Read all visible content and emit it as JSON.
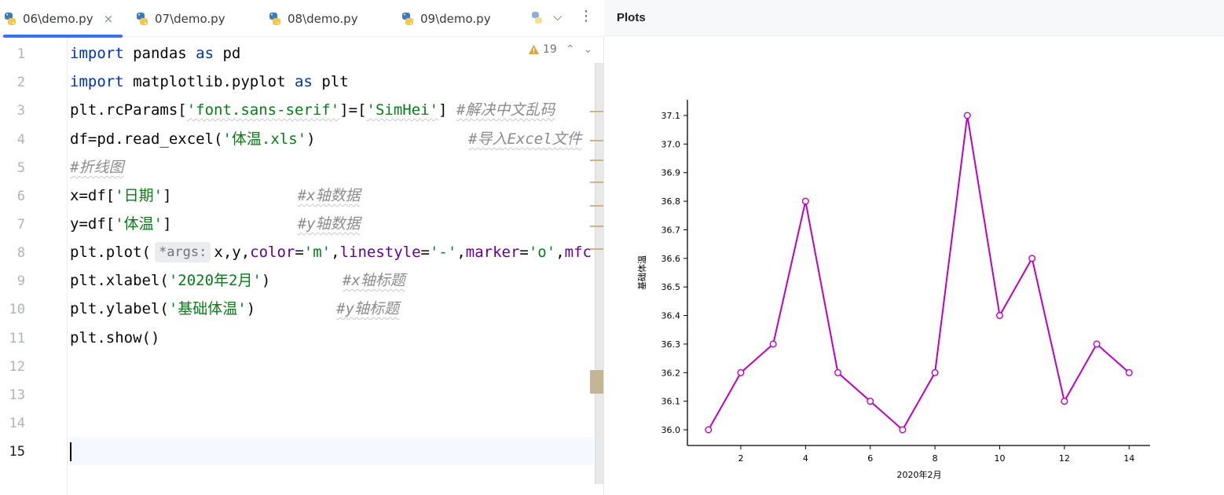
{
  "tabs": [
    {
      "label": "06\\demo.py",
      "active": true
    },
    {
      "label": "07\\demo.py",
      "active": false
    },
    {
      "label": "08\\demo.py",
      "active": false
    },
    {
      "label": "09\\demo.py",
      "active": false
    }
  ],
  "icons": {
    "close": "×",
    "dropdown": "⌵",
    "menu": "⋮",
    "up": "⌃",
    "down": "⌄"
  },
  "inspections": {
    "count": "19"
  },
  "line_numbers": [
    "1",
    "2",
    "3",
    "4",
    "5",
    "6",
    "7",
    "8",
    "9",
    "10",
    "11",
    "12",
    "13",
    "14",
    "15"
  ],
  "code": {
    "l1": {
      "a": "import",
      "b": " pandas ",
      "c": "as",
      "d": " pd"
    },
    "l2": {
      "a": "import",
      "b": " matplotlib.pyplot ",
      "c": "as",
      "d": " plt"
    },
    "l3": {
      "a": "plt.rcParams[",
      "b": "'font.sans-serif'",
      "c": "]=[",
      "d": "'SimHei'",
      "e": "] ",
      "f": "#解决中文乱码"
    },
    "l4": {
      "a": "df=pd.read_excel(",
      "b": "'体温.xls'",
      "c": ")",
      "pad": "                 ",
      "d": "#导入Excel文件"
    },
    "l5": {
      "a": "#折线图"
    },
    "l6": {
      "a": "x=df[",
      "b": "'日期'",
      "c": "]",
      "pad": "              ",
      "d": "#x轴数据"
    },
    "l7": {
      "a": "y=df[",
      "b": "'体温'",
      "c": "]",
      "pad": "              ",
      "d": "#y轴数据"
    },
    "l8": {
      "a": "plt.plot(",
      "hint": "*args:",
      "b": "x,y,",
      "c": "color",
      "d": "=",
      "e": "'m'",
      "f": ",",
      "g": "linestyle",
      "h": "=",
      "i": "'-'",
      "j": ",",
      "k": "marker",
      "l": "=",
      "m": "'o'",
      "n": ",",
      "o": "mfc"
    },
    "l9": {
      "a": "plt.xlabel(",
      "b": "'2020年2月'",
      "c": ")",
      "pad": "        ",
      "d": "#x轴标题"
    },
    "l10": {
      "a": "plt.ylabel(",
      "b": "'基础体温'",
      "c": ")",
      "pad": "         ",
      "d": "#y轴标题"
    },
    "l11": {
      "a": "plt.show()"
    }
  },
  "plots_panel": {
    "title": "Plots"
  },
  "colors": {
    "line": "#bf00bf",
    "accent": "#3574f0"
  },
  "chart_data": {
    "type": "line",
    "x": [
      1,
      2,
      3,
      4,
      5,
      6,
      7,
      8,
      9,
      10,
      11,
      12,
      13,
      14
    ],
    "y": [
      36.0,
      36.2,
      36.3,
      36.8,
      36.2,
      36.1,
      36.0,
      36.2,
      37.1,
      36.4,
      36.6,
      36.1,
      36.3,
      36.2
    ],
    "xticks": [
      2,
      4,
      6,
      8,
      10,
      12,
      14
    ],
    "yticks": [
      36.0,
      36.1,
      36.2,
      36.3,
      36.4,
      36.5,
      36.6,
      36.7,
      36.8,
      36.9,
      37.0,
      37.1
    ],
    "xtick_labels": [
      "2",
      "4",
      "6",
      "8",
      "10",
      "12",
      "14"
    ],
    "ytick_labels": [
      "36.0",
      "36.1",
      "36.2",
      "36.3",
      "36.4",
      "36.5",
      "36.6",
      "36.7",
      "36.8",
      "36.9",
      "37.0",
      "37.1"
    ],
    "xlim": [
      0.35,
      14.65
    ],
    "ylim": [
      35.945,
      37.155
    ],
    "xlabel": "2020年2月",
    "ylabel": "基础体温",
    "linestyle": "-",
    "marker": "o",
    "marker_face": "white",
    "grid": false,
    "title": ""
  }
}
